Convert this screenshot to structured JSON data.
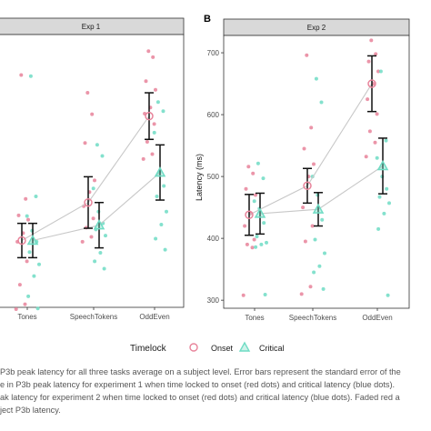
{
  "chart_data": [
    {
      "type": "scatter",
      "panel_letter": "",
      "strip_title": "Exp 1",
      "ylabel": "",
      "categories": [
        "Tones",
        "SpeechTokens",
        "OddEven"
      ],
      "ylim": [
        255,
        700
      ],
      "yticks": [],
      "grid": false,
      "series": [
        {
          "name": "Onset",
          "color": "#e8839a",
          "marker": "circle",
          "means": [
            364,
            426,
            567
          ],
          "errors": [
            28,
            42,
            38
          ],
          "points": [
            [
              252,
              260,
              292,
              330,
              362,
              376,
              398,
              405,
              432,
              634
            ],
            [
              362,
              370,
              385,
              400,
              420,
              443,
              462,
              523,
              570,
              605
            ],
            [
              497,
              505,
              525,
              554,
              571,
              581,
              610,
              624,
              663,
              673
            ]
          ]
        },
        {
          "name": "Critical",
          "color": "#6fdcc4",
          "marker": "triangle",
          "means": [
            364,
            389,
            475
          ],
          "errors": [
            28,
            37,
            45
          ],
          "points": [
            [
              253,
              273,
              306,
              325,
              345,
              362,
              380,
              404,
              436,
              632
            ],
            [
              318,
              330,
              344,
              372,
              382,
              392,
              411,
              449,
              502,
              520
            ],
            [
              349,
              367,
              390,
              411,
              436,
              453,
              475,
              540,
              575,
              590
            ]
          ]
        }
      ]
    },
    {
      "type": "scatter",
      "panel_letter": "B",
      "strip_title": "Exp 2",
      "ylabel": "Latency (ms)",
      "categories": [
        "Tones",
        "SpeechTokens",
        "OddEven"
      ],
      "ylim": [
        287,
        728
      ],
      "yticks": [
        300,
        400,
        500,
        600,
        700
      ],
      "grid": false,
      "series": [
        {
          "name": "Onset",
          "color": "#e8839a",
          "marker": "circle",
          "means": [
            438,
            485,
            650
          ],
          "errors": [
            33,
            28,
            45
          ],
          "points": [
            [
              308,
              385,
              390,
              398,
              420,
              440,
              470,
              480,
              505,
              516
            ],
            [
              310,
              322,
              395,
              420,
              450,
              500,
              520,
              545,
              579,
              696
            ],
            [
              532,
              555,
              573,
              601,
              625,
              650,
              670,
              686,
              698,
              720
            ]
          ]
        },
        {
          "name": "Critical",
          "color": "#6fdcc4",
          "marker": "triangle",
          "means": [
            440,
            447,
            517
          ],
          "errors": [
            33,
            27,
            45
          ],
          "points": [
            [
              309,
              386,
              390,
              393,
              403,
              425,
              448,
              460,
              497,
              521
            ],
            [
              318,
              345,
              355,
              376,
              398,
              430,
              470,
              500,
              620,
              658
            ],
            [
              308,
              415,
              440,
              457,
              467,
              480,
              500,
              530,
              558,
              670
            ]
          ]
        }
      ]
    }
  ],
  "legend": {
    "title": "Timelock",
    "items": [
      {
        "label": "Onset",
        "color": "#e8839a",
        "marker": "circle"
      },
      {
        "label": "Critical",
        "color": "#6fdcc4",
        "marker": "triangle"
      }
    ]
  },
  "caption_lines": [
    "P3b peak latency for all three tasks average on a subject level. Error bars represent the standard error of the",
    "e in P3b peak latency for experiment 1 when time locked to onset (red dots) and critical latency (blue dots).",
    "ak latency for experiment 2 when time locked to onset (red dots) and critical latency (blue dots). Faded red a",
    "ject P3b latency."
  ]
}
